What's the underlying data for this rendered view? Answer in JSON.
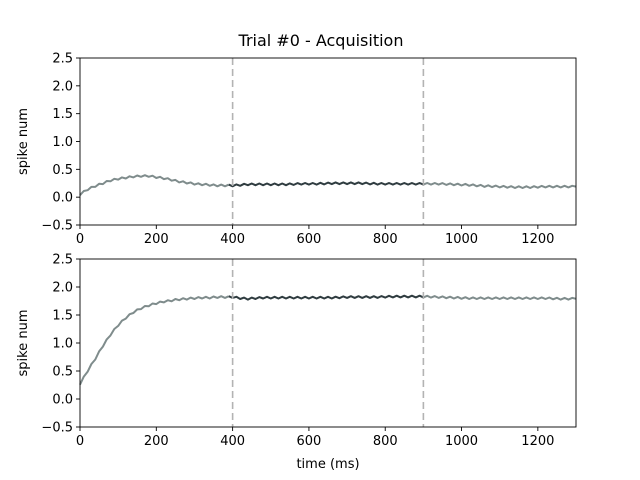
{
  "title": "Trial #0 - Acquisition",
  "colors": {
    "outside": "#7f8c8c",
    "window": "#2f3c40",
    "marker": "#b3b3b3"
  },
  "chart_data": [
    {
      "type": "line",
      "xlabel": "",
      "ylabel": "spike num",
      "xlim": [
        0,
        1300
      ],
      "ylim": [
        -0.5,
        2.5
      ],
      "xticks": [
        "0",
        "200",
        "400",
        "600",
        "800",
        "1000",
        "1200"
      ],
      "yticks": [
        "−0.5",
        "0.0",
        "0.5",
        "1.0",
        "1.5",
        "2.0",
        "2.5"
      ],
      "markers_x": [
        400,
        900
      ],
      "window_x": [
        400,
        900
      ],
      "series": [
        {
          "x": [
            0,
            20,
            40,
            60,
            80,
            100,
            120,
            140,
            160,
            180,
            200,
            220,
            240,
            260,
            280,
            300,
            320,
            340,
            360,
            380,
            400,
            420,
            440,
            460,
            480,
            500,
            540,
            580,
            620,
            660,
            700,
            740,
            780,
            820,
            860,
            900,
            940,
            980,
            1020,
            1060,
            1100,
            1140,
            1180,
            1220,
            1260,
            1300
          ],
          "values": [
            0.05,
            0.14,
            0.2,
            0.25,
            0.3,
            0.33,
            0.35,
            0.37,
            0.38,
            0.38,
            0.36,
            0.34,
            0.31,
            0.28,
            0.26,
            0.24,
            0.23,
            0.22,
            0.21,
            0.21,
            0.21,
            0.22,
            0.23,
            0.23,
            0.23,
            0.23,
            0.23,
            0.24,
            0.24,
            0.25,
            0.25,
            0.25,
            0.24,
            0.24,
            0.24,
            0.24,
            0.24,
            0.23,
            0.22,
            0.2,
            0.19,
            0.18,
            0.18,
            0.19,
            0.19,
            0.19
          ]
        }
      ]
    },
    {
      "type": "line",
      "xlabel": "time (ms)",
      "ylabel": "spike num",
      "xlim": [
        0,
        1300
      ],
      "ylim": [
        -0.5,
        2.5
      ],
      "xticks": [
        "0",
        "200",
        "400",
        "600",
        "800",
        "1000",
        "1200"
      ],
      "yticks": [
        "−0.5",
        "0.0",
        "0.5",
        "1.0",
        "1.5",
        "2.0",
        "2.5"
      ],
      "markers_x": [
        400,
        900
      ],
      "window_x": [
        400,
        900
      ],
      "series": [
        {
          "x": [
            0,
            20,
            40,
            60,
            80,
            100,
            120,
            140,
            160,
            180,
            200,
            220,
            240,
            260,
            280,
            300,
            320,
            340,
            360,
            380,
            400,
            420,
            440,
            460,
            480,
            500,
            540,
            580,
            620,
            660,
            700,
            740,
            780,
            820,
            860,
            900,
            940,
            980,
            1020,
            1060,
            1100,
            1140,
            1180,
            1220,
            1260,
            1300
          ],
          "values": [
            0.27,
            0.5,
            0.72,
            0.95,
            1.15,
            1.32,
            1.45,
            1.55,
            1.62,
            1.67,
            1.71,
            1.74,
            1.76,
            1.78,
            1.79,
            1.8,
            1.81,
            1.81,
            1.82,
            1.82,
            1.82,
            1.8,
            1.79,
            1.8,
            1.81,
            1.81,
            1.81,
            1.81,
            1.81,
            1.81,
            1.82,
            1.82,
            1.82,
            1.83,
            1.83,
            1.83,
            1.82,
            1.81,
            1.8,
            1.8,
            1.8,
            1.8,
            1.8,
            1.8,
            1.79,
            1.79
          ]
        }
      ]
    }
  ]
}
